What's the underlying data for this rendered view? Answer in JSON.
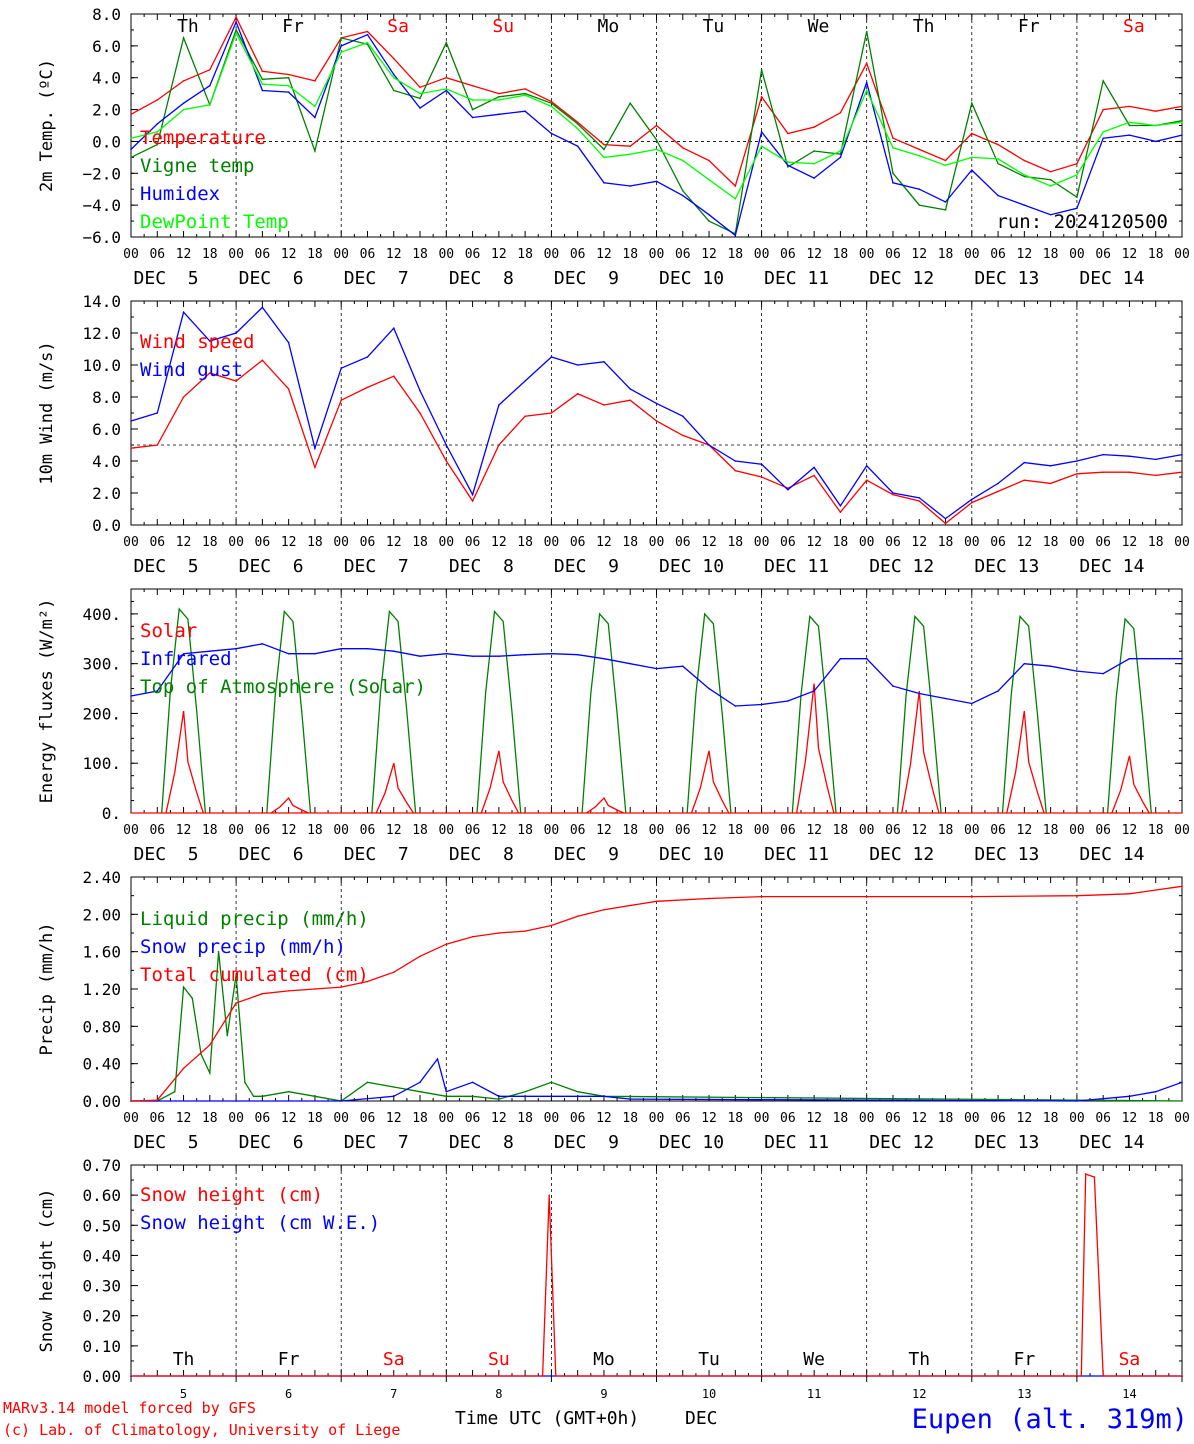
{
  "footer": {
    "model_line": "MARv3.14 model forced by GFS",
    "lab_line": "(c) Lab. of Climatology, University of Liege",
    "time_label": "Time UTC (GMT+0h)",
    "month_label": "DEC",
    "station": "Eupen (alt. 319m)"
  },
  "colors": {
    "red": "#ff0000",
    "darkgreen": "#008000",
    "blue": "#0000ff",
    "lightgreen": "#00ff00"
  },
  "chart_data": [
    {
      "type": "line",
      "ylabel": "2m Temp. (ºC)",
      "ylim": [
        -6,
        8
      ],
      "yticks": [
        "8.0",
        "6.0",
        "4.0",
        "2.0",
        "0.0",
        "−2.0",
        "−4.0",
        "−6.0"
      ],
      "ref_line": 0,
      "run_label": "run: 2024120500",
      "day_names": [
        "Th",
        "Fr",
        "Sa",
        "Su",
        "Mo",
        "Tu",
        "We",
        "Th",
        "Fr",
        "Sa"
      ],
      "hour_ticks": [
        "00",
        "06",
        "12",
        "18"
      ],
      "date_labels": [
        "DEC  5",
        "DEC  6",
        "DEC  7",
        "DEC  8",
        "DEC  9",
        "DEC 10",
        "DEC 11",
        "DEC 12",
        "DEC 13",
        "DEC 14"
      ],
      "x": [
        0,
        6,
        12,
        18,
        24,
        30,
        36,
        42,
        48,
        54,
        60,
        66,
        72,
        78,
        84,
        90,
        96,
        102,
        108,
        114,
        120,
        126,
        132,
        138,
        144,
        150,
        156,
        162,
        168,
        174,
        180,
        186,
        192,
        198,
        204,
        210,
        216,
        222,
        228,
        234,
        240
      ],
      "series": [
        {
          "name": "Temperature",
          "color": "#ff0000",
          "values": [
            1.7,
            2.6,
            3.8,
            4.5,
            7.8,
            4.4,
            4.2,
            3.8,
            6.5,
            6.9,
            5.2,
            3.4,
            4.0,
            3.5,
            3.0,
            3.3,
            2.5,
            1.2,
            -0.2,
            -0.3,
            1.0,
            -0.4,
            -1.2,
            -2.8,
            2.8,
            0.5,
            0.9,
            1.8,
            4.9,
            0.2,
            -0.5,
            -1.2,
            0.5,
            -0.2,
            -1.2,
            -1.9,
            -1.4,
            2.0,
            2.2,
            1.9,
            2.2
          ]
        },
        {
          "name": "Vigne temp",
          "color": "#008000",
          "values": [
            -1.0,
            -0.2,
            6.5,
            2.3,
            7.0,
            3.9,
            4.0,
            -0.6,
            6.5,
            6.1,
            3.2,
            2.7,
            6.2,
            2.0,
            2.8,
            3.0,
            2.4,
            1.1,
            -0.5,
            2.4,
            0.1,
            -3.1,
            -5.0,
            -5.8,
            4.5,
            -1.6,
            -0.6,
            -0.8,
            6.9,
            -2.0,
            -4.0,
            -4.3,
            2.4,
            -1.4,
            -2.2,
            -2.4,
            -3.5,
            3.8,
            1.0,
            1.0,
            1.3
          ]
        },
        {
          "name": "Humidex",
          "color": "#0000ff",
          "values": [
            -0.5,
            1.1,
            2.4,
            3.5,
            7.5,
            3.2,
            3.1,
            1.5,
            6.0,
            6.7,
            4.2,
            2.1,
            3.2,
            1.5,
            1.7,
            1.9,
            0.5,
            -0.3,
            -2.6,
            -2.8,
            -2.5,
            -3.4,
            -4.6,
            -5.9,
            0.6,
            -1.5,
            -2.3,
            -1.0,
            3.7,
            -2.6,
            -3.0,
            -3.8,
            -1.8,
            -3.4,
            -4.0,
            -4.6,
            -4.2,
            0.2,
            0.4,
            0.0,
            0.4
          ]
        },
        {
          "name": "DewPoint Temp",
          "color": "#00ff00",
          "values": [
            0.2,
            0.6,
            2.0,
            2.3,
            6.8,
            3.6,
            3.5,
            2.2,
            5.6,
            6.2,
            4.0,
            3.0,
            3.3,
            2.6,
            2.6,
            2.9,
            2.2,
            0.8,
            -1.0,
            -0.8,
            -0.5,
            -1.2,
            -2.4,
            -3.6,
            -0.3,
            -1.3,
            -1.4,
            -0.6,
            3.2,
            -0.4,
            -0.9,
            -1.5,
            -1.0,
            -1.1,
            -2.1,
            -2.8,
            -2.1,
            0.6,
            1.2,
            1.0,
            1.2
          ]
        }
      ]
    },
    {
      "type": "line",
      "ylabel": "10m Wind (m/s)",
      "ylim": [
        0,
        14
      ],
      "yticks": [
        "14.0",
        "12.0",
        "10.0",
        "8.0",
        "6.0",
        "4.0",
        "2.0",
        "0.0"
      ],
      "ref_line": 5,
      "hour_ticks": [
        "00",
        "06",
        "12",
        "18"
      ],
      "date_labels": [
        "DEC  5",
        "DEC  6",
        "DEC  7",
        "DEC  8",
        "DEC  9",
        "DEC 10",
        "DEC 11",
        "DEC 12",
        "DEC 13",
        "DEC 14"
      ],
      "x": [
        0,
        6,
        12,
        18,
        24,
        30,
        36,
        42,
        48,
        54,
        60,
        66,
        72,
        78,
        84,
        90,
        96,
        102,
        108,
        114,
        120,
        126,
        132,
        138,
        144,
        150,
        156,
        162,
        168,
        174,
        180,
        186,
        192,
        198,
        204,
        210,
        216,
        222,
        228,
        234,
        240
      ],
      "series": [
        {
          "name": "Wind speed",
          "color": "#ff0000",
          "values": [
            4.8,
            5.0,
            8.0,
            9.5,
            9.0,
            10.3,
            8.5,
            3.6,
            7.8,
            8.6,
            9.3,
            7.0,
            4.0,
            1.5,
            5.0,
            6.8,
            7.0,
            8.2,
            7.5,
            7.8,
            6.5,
            5.6,
            5.0,
            3.4,
            3.0,
            2.3,
            3.1,
            0.8,
            2.8,
            1.9,
            1.5,
            0.1,
            1.4,
            2.1,
            2.8,
            2.6,
            3.2,
            3.3,
            3.3,
            3.1,
            3.3
          ]
        },
        {
          "name": "Wind gust",
          "color": "#0000ff",
          "values": [
            6.5,
            7.0,
            13.3,
            11.5,
            12.0,
            13.6,
            11.4,
            4.8,
            9.8,
            10.5,
            12.3,
            8.4,
            5.0,
            1.9,
            7.5,
            9.0,
            10.5,
            10.0,
            10.2,
            8.5,
            7.6,
            6.8,
            5.0,
            4.0,
            3.8,
            2.2,
            3.6,
            1.2,
            3.7,
            2.0,
            1.7,
            0.4,
            1.6,
            2.6,
            3.9,
            3.7,
            4.0,
            4.4,
            4.3,
            4.1,
            4.4
          ]
        }
      ]
    },
    {
      "type": "line",
      "ylabel": "Energy fluxes (W/m²)",
      "ylim": [
        0,
        450
      ],
      "yticks": [
        "400.",
        "300.",
        "200.",
        "100.",
        "0."
      ],
      "yticks_values": [
        400,
        300,
        200,
        100,
        0
      ],
      "hour_ticks": [
        "00",
        "06",
        "12",
        "18"
      ],
      "date_labels": [
        "DEC  5",
        "DEC  6",
        "DEC  7",
        "DEC  8",
        "DEC  9",
        "DEC 10",
        "DEC 11",
        "DEC 12",
        "DEC 13",
        "DEC 14"
      ],
      "toa_peaks": [
        410,
        405,
        405,
        405,
        400,
        400,
        395,
        395,
        395,
        390
      ],
      "solar_peaks": [
        205,
        30,
        100,
        125,
        30,
        125,
        260,
        245,
        205,
        115
      ],
      "series": [
        {
          "name": "Solar",
          "color": "#ff0000"
        },
        {
          "name": "Infrared",
          "color": "#0000ff",
          "x": [
            0,
            6,
            12,
            18,
            24,
            30,
            36,
            42,
            48,
            54,
            60,
            66,
            72,
            78,
            84,
            90,
            96,
            102,
            108,
            114,
            120,
            126,
            132,
            138,
            144,
            150,
            156,
            162,
            168,
            174,
            180,
            186,
            192,
            198,
            204,
            210,
            216,
            222,
            228,
            234,
            240
          ],
          "values": [
            235,
            245,
            320,
            325,
            330,
            340,
            320,
            320,
            330,
            330,
            325,
            315,
            320,
            315,
            315,
            318,
            320,
            318,
            310,
            300,
            290,
            295,
            250,
            215,
            218,
            225,
            245,
            310,
            310,
            255,
            240,
            230,
            220,
            245,
            300,
            295,
            285,
            280,
            310,
            310,
            310
          ]
        },
        {
          "name": "Top of Atmosphere (Solar)",
          "color": "#008000"
        }
      ]
    },
    {
      "type": "line",
      "ylabel": "Precip (mm/h)",
      "ylim": [
        0,
        2.4
      ],
      "yticks": [
        "2.40",
        "2.00",
        "1.60",
        "1.20",
        "0.80",
        "0.40",
        "0.00"
      ],
      "hour_ticks": [
        "00",
        "06",
        "12",
        "18"
      ],
      "date_labels": [
        "DEC  5",
        "DEC  6",
        "DEC  7",
        "DEC  8",
        "DEC  9",
        "DEC 10",
        "DEC 11",
        "DEC 12",
        "DEC 13",
        "DEC 14"
      ],
      "series": [
        {
          "name": "Liquid precip (mm/h)",
          "color": "#008000",
          "x": [
            0,
            6,
            10,
            12,
            14,
            16,
            18,
            20,
            22,
            24,
            26,
            28,
            30,
            36,
            42,
            48,
            54,
            60,
            66,
            72,
            78,
            84,
            90,
            96,
            102,
            108,
            240
          ],
          "values": [
            0,
            0,
            0.1,
            1.22,
            1.1,
            0.5,
            0.3,
            1.6,
            0.7,
            1.35,
            0.2,
            0.05,
            0.05,
            0.1,
            0.05,
            0.0,
            0.2,
            0.15,
            0.1,
            0.05,
            0.05,
            0.02,
            0.1,
            0.2,
            0.1,
            0.05,
            0.0
          ]
        },
        {
          "name": "Snow precip (mm/h)",
          "color": "#0000ff",
          "x": [
            0,
            24,
            48,
            60,
            66,
            70,
            72,
            78,
            84,
            96,
            108,
            114,
            216,
            228,
            234,
            240
          ],
          "values": [
            0,
            0,
            0,
            0.05,
            0.2,
            0.45,
            0.1,
            0.2,
            0.05,
            0.05,
            0.05,
            0.02,
            0.0,
            0.05,
            0.1,
            0.2
          ]
        },
        {
          "name": "Total cumulated (cm)",
          "color": "#ff0000",
          "x": [
            0,
            6,
            12,
            18,
            24,
            30,
            36,
            42,
            48,
            54,
            60,
            66,
            72,
            78,
            84,
            90,
            96,
            102,
            108,
            120,
            132,
            144,
            168,
            192,
            216,
            228,
            240
          ],
          "values": [
            0,
            0.01,
            0.35,
            0.6,
            1.05,
            1.15,
            1.18,
            1.2,
            1.22,
            1.28,
            1.38,
            1.55,
            1.68,
            1.76,
            1.8,
            1.82,
            1.88,
            1.98,
            2.05,
            2.14,
            2.17,
            2.19,
            2.19,
            2.19,
            2.2,
            2.22,
            2.3
          ]
        }
      ]
    },
    {
      "type": "line",
      "ylabel": "Snow height (cm)",
      "ylim": [
        0,
        0.7
      ],
      "yticks": [
        "0.70",
        "0.60",
        "0.50",
        "0.40",
        "0.30",
        "0.20",
        "0.10",
        "0.00"
      ],
      "day_names": [
        "Th",
        "Fr",
        "Sa",
        "Su",
        "Mo",
        "Tu",
        "We",
        "Th",
        "Fr",
        "Sa"
      ],
      "day_numbers": [
        "5",
        "6",
        "7",
        "8",
        "9",
        "10",
        "11",
        "12",
        "13",
        "14"
      ],
      "series": [
        {
          "name": "Snow height (cm)",
          "color": "#ff0000",
          "x": [
            0,
            94,
            95.5,
            97,
            217,
            218,
            220,
            222,
            240
          ],
          "values": [
            0,
            0,
            0.6,
            0,
            0,
            0.67,
            0.66,
            0,
            0
          ]
        },
        {
          "name": "Snow height (cm W.E.)",
          "color": "#0000ff",
          "x": [
            0,
            240
          ],
          "values": [
            0,
            0
          ]
        }
      ]
    }
  ]
}
